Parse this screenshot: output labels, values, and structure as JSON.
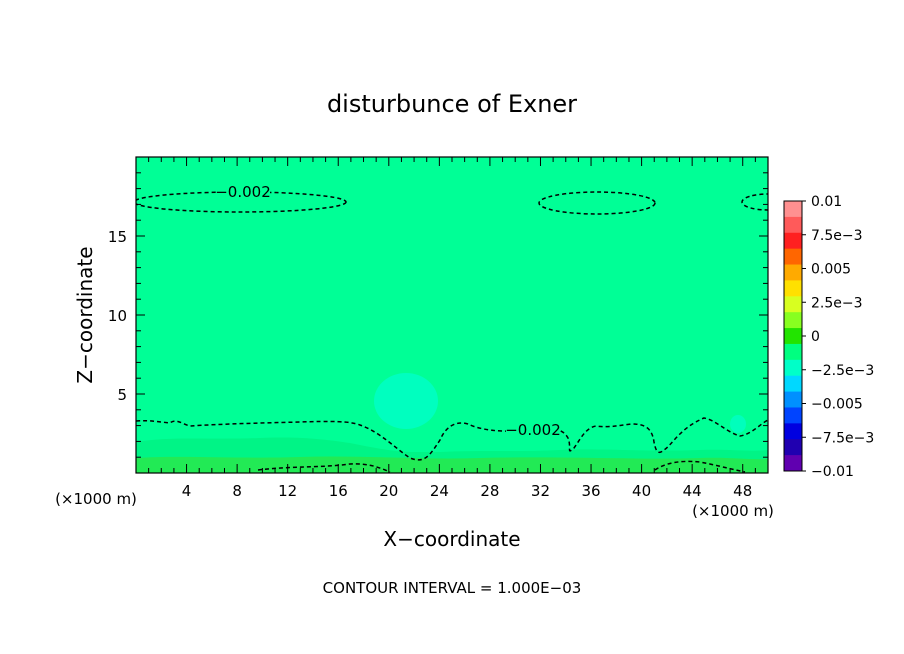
{
  "chart_data": {
    "type": "heatmap",
    "title": "disturbunce of Exner",
    "xlabel": "X−coordinate",
    "ylabel": "Z−coordinate",
    "x_unit_left": "(×1000 m)",
    "x_unit_right": "(×1000 m)",
    "xlim": [
      0,
      50
    ],
    "ylim": [
      0,
      20
    ],
    "xticks": [
      4,
      8,
      12,
      16,
      20,
      24,
      28,
      32,
      36,
      40,
      44,
      48
    ],
    "xtick_labels": [
      "4",
      "8",
      "12",
      "16",
      "20",
      "24",
      "28",
      "32",
      "36",
      "40",
      "44",
      "48"
    ],
    "yticks": [
      5,
      10,
      15
    ],
    "ytick_labels": [
      "5",
      "10",
      "15"
    ],
    "footer": "CONTOUR INTERVAL = 1.000E−03",
    "contour_interval": 0.001,
    "background_level": -0.001,
    "contour_labels": [
      {
        "text": "−0.002",
        "x": 7.5,
        "y": 17.2
      },
      {
        "text": "−0.002",
        "x": 31.5,
        "y": 2.8
      }
    ],
    "colorbar": {
      "labels": [
        "0.01",
        "7.5e−3",
        "0.005",
        "2.5e−3",
        "0",
        "−2.5e−3",
        "−0.005",
        "−7.5e−3",
        "−0.01"
      ],
      "colors_top_to_bottom": [
        "#ff9090",
        "#ff5a5a",
        "#ff2020",
        "#ff6600",
        "#ffaa00",
        "#ffe000",
        "#d8ff20",
        "#88ff20",
        "#22e400",
        "#00ff80",
        "#00ffc8",
        "#00d8ff",
        "#0090ff",
        "#0044ff",
        "#0000e0",
        "#2000b0",
        "#6000b0"
      ]
    }
  }
}
